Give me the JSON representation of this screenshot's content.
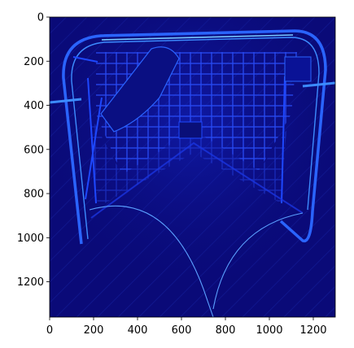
{
  "chart_data": {
    "type": "heatmap",
    "title": "",
    "xlabel": "",
    "ylabel": "",
    "x_range": [
      0,
      1300
    ],
    "y_range": [
      1360,
      0
    ],
    "x_ticks": [
      0,
      200,
      400,
      600,
      800,
      1000,
      1200
    ],
    "y_ticks": [
      0,
      200,
      400,
      600,
      800,
      1000,
      1200
    ],
    "x_tick_labels": [
      "0",
      "200",
      "400",
      "600",
      "800",
      "1000",
      "1200"
    ],
    "y_tick_labels": [
      "0",
      "200",
      "400",
      "600",
      "800",
      "1000",
      "1200"
    ],
    "colormap": "jet",
    "grid": false,
    "colors": {
      "background": "#0a0a78",
      "mid": "#0f19b4",
      "edge": "#1e3cff",
      "bright": "#3c8cff",
      "highlight": "#78c8ff"
    }
  }
}
